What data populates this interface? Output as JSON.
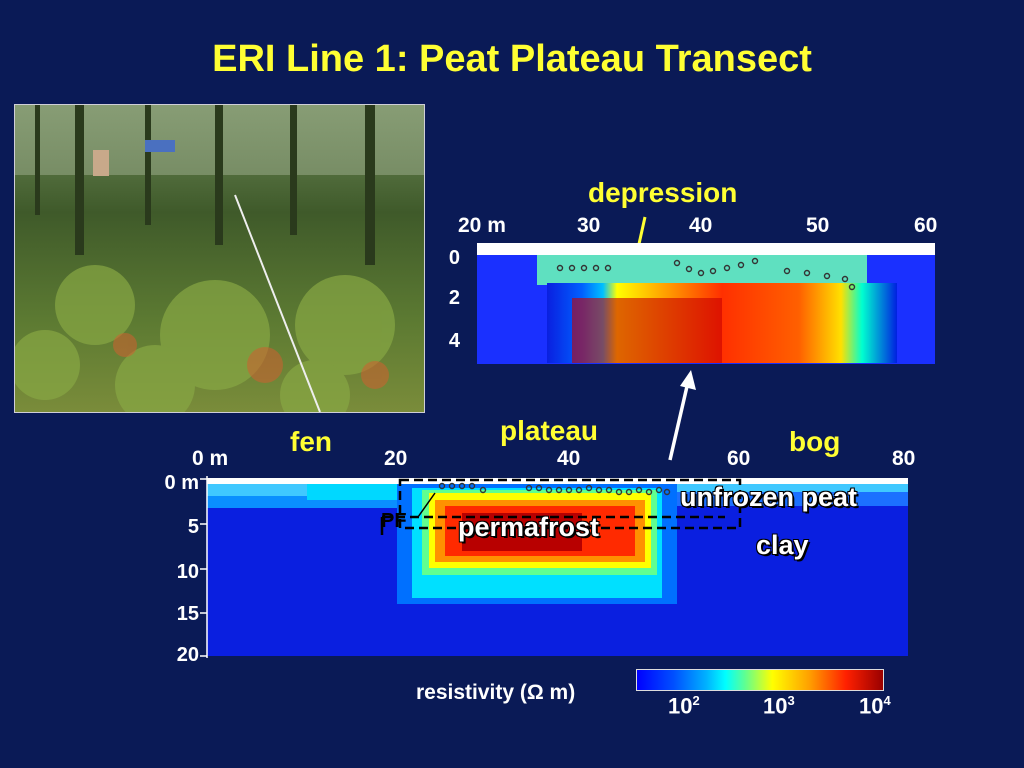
{
  "title": "ERI Line 1: Peat Plateau Transect",
  "photo": {
    "alt": "field photo"
  },
  "top_section": {
    "annotation": "depression",
    "x_ticks": [
      "20 m",
      "30",
      "40",
      "50",
      "60"
    ],
    "y_ticks": [
      "0",
      "2",
      "4"
    ]
  },
  "main_section": {
    "x_ticks": [
      "0 m",
      "20",
      "40",
      "60",
      "80"
    ],
    "y_ticks": [
      "0 m",
      "5",
      "10",
      "15",
      "20"
    ],
    "labels": {
      "fen": "fen",
      "plateau": "plateau",
      "bog": "bog",
      "unfrozen_peat": "unfrozen peat",
      "clay": "clay",
      "permafrost": "permafrost",
      "pf_marker": "PF"
    }
  },
  "colorbar": {
    "label": "resistivity (Ω m)",
    "ticks": [
      {
        "base": "10",
        "exp": "2"
      },
      {
        "base": "10",
        "exp": "3"
      },
      {
        "base": "10",
        "exp": "4"
      }
    ]
  },
  "colors": {
    "background": "#0a1a56",
    "title": "#ffff33",
    "region_label": "#ffff33"
  }
}
